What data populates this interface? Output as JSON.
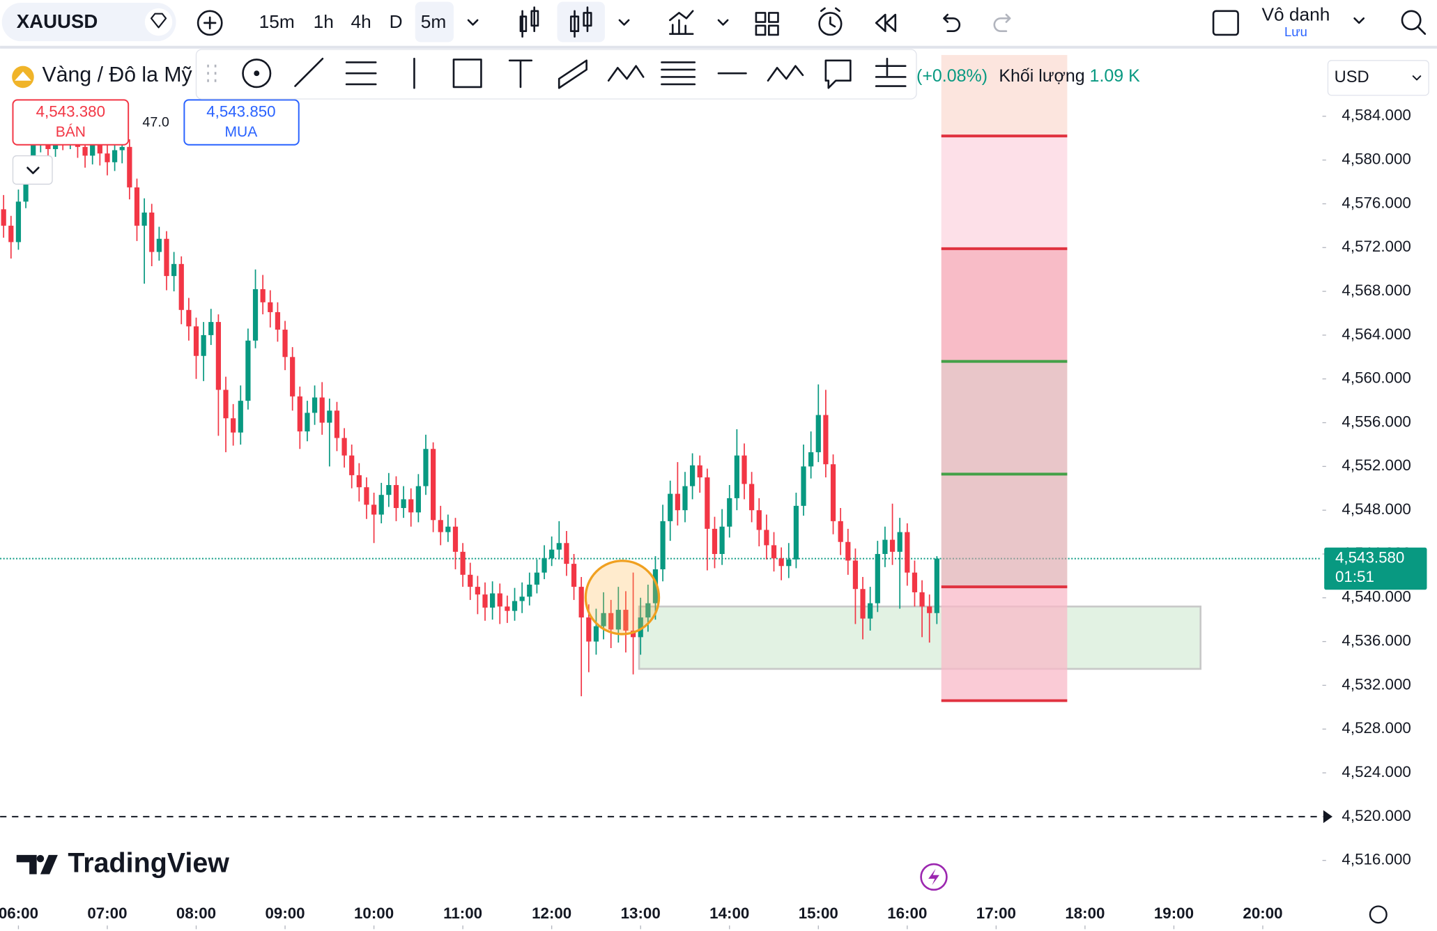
{
  "toolbar": {
    "symbol": "XAUUSD",
    "intervals": [
      "15m",
      "1h",
      "4h",
      "D",
      "5m"
    ],
    "layout_name": "Vô danh",
    "save": "Lưu"
  },
  "legend": {
    "title": "Vàng / Đô la Mỹ",
    "change": "(+0.08%)",
    "volume_label": "Khối lượng",
    "volume": "1.09 K"
  },
  "trade": {
    "sell_price": "4,543.380",
    "sell": "BÁN",
    "spread": "47.0",
    "buy_price": "4,543.850",
    "buy": "MUA"
  },
  "currency": "USD",
  "brand": "TradingView",
  "chart_data": {
    "type": "candlestick",
    "up_color": "#089981",
    "down_color": "#f23645",
    "xlim": [
      347.6,
      1238.4
    ],
    "ylim": [
      4513.4,
      4589.6
    ],
    "xticks": [
      {
        "value": 360,
        "label": "06:00"
      },
      {
        "value": 420,
        "label": "07:00"
      },
      {
        "value": 480,
        "label": "08:00"
      },
      {
        "value": 540,
        "label": "09:00"
      },
      {
        "value": 600,
        "label": "10:00"
      },
      {
        "value": 660,
        "label": "11:00"
      },
      {
        "value": 720,
        "label": "12:00"
      },
      {
        "value": 780,
        "label": "13:00"
      },
      {
        "value": 840,
        "label": "14:00"
      },
      {
        "value": 900,
        "label": "15:00"
      },
      {
        "value": 960,
        "label": "16:00"
      },
      {
        "value": 1020,
        "label": "17:00"
      },
      {
        "value": 1080,
        "label": "18:00"
      },
      {
        "value": 1140,
        "label": "19:00"
      },
      {
        "value": 1200,
        "label": "20:00"
      }
    ],
    "yticks": [
      {
        "value": 4516,
        "label": "4,516.000"
      },
      {
        "value": 4520,
        "label": "4,520.000"
      },
      {
        "value": 4524,
        "label": "4,524.000"
      },
      {
        "value": 4528,
        "label": "4,528.000"
      },
      {
        "value": 4532,
        "label": "4,532.000"
      },
      {
        "value": 4536,
        "label": "4,536.000"
      },
      {
        "value": 4540,
        "label": "4,540.000"
      },
      {
        "value": 4544,
        "label": "4,544.000"
      },
      {
        "value": 4548,
        "label": "4,548.000"
      },
      {
        "value": 4552,
        "label": "4,552.000"
      },
      {
        "value": 4556,
        "label": "4,556.000"
      },
      {
        "value": 4560,
        "label": "4,560.000"
      },
      {
        "value": 4564,
        "label": "4,564.000"
      },
      {
        "value": 4568,
        "label": "4,568.000"
      },
      {
        "value": 4572,
        "label": "4,572.000"
      },
      {
        "value": 4576,
        "label": "4,576.000"
      },
      {
        "value": 4580,
        "label": "4,580.000"
      },
      {
        "value": 4584,
        "label": "4,584.000"
      }
    ],
    "x": [
      350,
      355,
      360,
      365,
      370,
      375,
      380,
      385,
      390,
      395,
      400,
      405,
      410,
      415,
      420,
      425,
      430,
      435,
      440,
      445,
      450,
      455,
      460,
      465,
      470,
      475,
      480,
      485,
      490,
      495,
      500,
      505,
      510,
      515,
      520,
      525,
      530,
      535,
      540,
      545,
      550,
      555,
      560,
      565,
      570,
      575,
      580,
      585,
      590,
      595,
      600,
      605,
      610,
      615,
      620,
      625,
      630,
      635,
      640,
      645,
      650,
      655,
      660,
      665,
      670,
      675,
      680,
      685,
      690,
      695,
      700,
      705,
      710,
      715,
      720,
      725,
      730,
      735,
      740,
      745,
      750,
      755,
      760,
      765,
      770,
      775,
      780,
      785,
      790,
      795,
      800,
      805,
      810,
      815,
      820,
      825,
      830,
      835,
      840,
      845,
      850,
      855,
      860,
      865,
      870,
      875,
      880,
      885,
      890,
      895,
      900,
      905,
      910,
      915,
      920,
      925,
      930,
      935,
      940,
      945,
      950,
      955,
      960,
      965,
      970,
      975,
      980
    ],
    "open": [
      4575.5,
      4574.0,
      4572.5,
      4576.2,
      4579.0,
      4581.5,
      4582.0,
      4581.0,
      4582.5,
      4581.8,
      4582.6,
      4581.2,
      4580.4,
      4581.9,
      4580.6,
      4579.8,
      4580.9,
      4581.2,
      4577.5,
      4574.0,
      4575.2,
      4571.6,
      4572.8,
      4569.4,
      4570.5,
      4566.3,
      4564.8,
      4562.1,
      4564.0,
      4565.2,
      4559.0,
      4556.4,
      4555.1,
      4558.0,
      4563.5,
      4568.2,
      4567.0,
      4566.1,
      4564.5,
      4562.0,
      4558.4,
      4555.2,
      4556.9,
      4558.3,
      4556.0,
      4557.1,
      4554.6,
      4553.0,
      4551.2,
      4550.1,
      4548.5,
      4547.6,
      4549.4,
      4550.3,
      4548.2,
      4549.0,
      4547.8,
      4550.2,
      4553.6,
      4547.1,
      4546.0,
      4546.5,
      4544.2,
      4542.1,
      4541.0,
      4540.3,
      4539.1,
      4540.4,
      4539.2,
      4538.8,
      4539.7,
      4540.1,
      4541.2,
      4542.3,
      4543.6,
      4544.4,
      4545.0,
      4543.1,
      4541.0,
      4538.2,
      4536.0,
      4537.4,
      4538.6,
      4537.1,
      4538.9,
      4537.0,
      4536.4,
      4538.2,
      4539.5,
      4542.6,
      4547.0,
      4549.5,
      4548.0,
      4550.2,
      4552.1,
      4551.0,
      4546.3,
      4544.0,
      4546.5,
      4549.1,
      4553.0,
      4550.4,
      4548.0,
      4546.2,
      4544.8,
      4543.6,
      4542.9,
      4543.5,
      4548.4,
      4552.0,
      4553.3,
      4556.7,
      4552.2,
      4547.0,
      4545.1,
      4543.4,
      4540.8,
      4538.1,
      4539.5,
      4544.0,
      4545.3,
      4544.2,
      4546.0,
      4542.3,
      4540.5,
      4539.2,
      4538.6
    ],
    "high": [
      4576.8,
      4574.9,
      4577.3,
      4580.1,
      4582.6,
      4583.4,
      4583.0,
      4583.6,
      4583.5,
      4583.9,
      4583.4,
      4582.1,
      4582.8,
      4582.5,
      4581.7,
      4582.0,
      4582.4,
      4581.9,
      4578.3,
      4576.5,
      4576.0,
      4573.9,
      4573.5,
      4571.6,
      4571.2,
      4567.4,
      4565.6,
      4565.2,
      4566.4,
      4565.9,
      4560.2,
      4557.7,
      4559.4,
      4564.6,
      4570.0,
      4569.5,
      4568.1,
      4567.0,
      4565.3,
      4562.9,
      4559.3,
      4558.0,
      4559.4,
      4559.7,
      4558.2,
      4557.9,
      4555.5,
      4554.0,
      4552.3,
      4551.0,
      4549.6,
      4550.5,
      4551.4,
      4551.1,
      4550.2,
      4550.0,
      4551.3,
      4554.9,
      4554.2,
      4548.4,
      4547.6,
      4547.3,
      4545.0,
      4543.2,
      4542.0,
      4541.4,
      4541.5,
      4541.3,
      4540.2,
      4540.9,
      4541.4,
      4542.3,
      4543.5,
      4544.8,
      4545.6,
      4547.0,
      4546.1,
      4544.0,
      4541.9,
      4539.4,
      4539.0,
      4540.5,
      4539.8,
      4541.0,
      4540.6,
      4542.3,
      4540.0,
      4541.2,
      4543.8,
      4548.5,
      4550.7,
      4552.4,
      4551.5,
      4553.2,
      4553.0,
      4551.8,
      4547.4,
      4548.1,
      4550.3,
      4555.4,
      4554.1,
      4551.5,
      4549.1,
      4547.6,
      4546.0,
      4544.6,
      4545.0,
      4549.6,
      4554.0,
      4555.2,
      4559.5,
      4559.0,
      4553.1,
      4548.2,
      4546.3,
      4544.5,
      4541.9,
      4541.0,
      4545.2,
      4546.5,
      4548.6,
      4547.3,
      4546.8,
      4543.4,
      4541.6,
      4540.3,
      4543.8
    ],
    "low": [
      4572.9,
      4571.0,
      4571.8,
      4575.6,
      4578.2,
      4580.7,
      4580.1,
      4580.3,
      4580.9,
      4581.0,
      4580.2,
      4579.3,
      4579.6,
      4579.5,
      4578.6,
      4579.0,
      4579.7,
      4576.4,
      4572.6,
      4568.7,
      4570.3,
      4570.8,
      4568.1,
      4568.0,
      4565.0,
      4563.5,
      4560.0,
      4559.8,
      4563.1,
      4554.8,
      4553.3,
      4553.9,
      4554.0,
      4557.2,
      4562.8,
      4565.9,
      4564.7,
      4563.4,
      4560.8,
      4557.1,
      4553.6,
      4554.3,
      4555.8,
      4554.9,
      4552.0,
      4553.4,
      4551.9,
      4550.0,
      4548.8,
      4547.2,
      4545.0,
      4546.8,
      4548.3,
      4547.0,
      4547.3,
      4546.5,
      4546.9,
      4549.4,
      4546.0,
      4544.8,
      4545.1,
      4542.6,
      4541.0,
      4539.8,
      4538.5,
      4537.9,
      4538.0,
      4537.6,
      4537.7,
      4537.9,
      4538.6,
      4539.3,
      4540.4,
      4541.7,
      4542.9,
      4543.5,
      4542.0,
      4539.8,
      4531.0,
      4533.2,
      4534.8,
      4536.2,
      4535.4,
      4535.9,
      4535.0,
      4533.0,
      4534.8,
      4536.9,
      4538.0,
      4541.5,
      4545.2,
      4546.6,
      4546.9,
      4549.0,
      4549.6,
      4542.5,
      4542.7,
      4543.0,
      4545.5,
      4548.0,
      4549.0,
      4546.9,
      4544.7,
      4543.5,
      4542.4,
      4541.6,
      4541.8,
      4542.7,
      4547.5,
      4550.9,
      4552.4,
      4551.0,
      4545.8,
      4543.9,
      4542.1,
      4537.6,
      4536.2,
      4537.0,
      4538.7,
      4542.8,
      4543.0,
      4539.0,
      4541.1,
      4539.2,
      4536.4,
      4535.9,
      4537.6
    ],
    "close": [
      4574.0,
      4572.5,
      4576.2,
      4579.0,
      4581.5,
      4582.0,
      4581.0,
      4582.5,
      4581.8,
      4582.6,
      4581.2,
      4580.4,
      4581.9,
      4580.6,
      4579.8,
      4580.9,
      4581.2,
      4577.5,
      4574.0,
      4575.2,
      4571.6,
      4572.8,
      4569.4,
      4570.5,
      4566.3,
      4564.8,
      4562.1,
      4564.0,
      4565.2,
      4559.0,
      4556.4,
      4555.1,
      4558.0,
      4563.5,
      4568.2,
      4567.0,
      4566.1,
      4564.5,
      4562.0,
      4558.4,
      4555.2,
      4556.9,
      4558.3,
      4556.0,
      4557.1,
      4554.6,
      4553.0,
      4551.2,
      4550.1,
      4548.5,
      4547.6,
      4549.4,
      4550.3,
      4548.2,
      4549.0,
      4547.8,
      4550.2,
      4553.6,
      4547.1,
      4546.0,
      4546.5,
      4544.2,
      4542.1,
      4541.0,
      4540.3,
      4539.1,
      4540.4,
      4539.2,
      4538.8,
      4539.7,
      4540.1,
      4541.2,
      4542.3,
      4543.6,
      4544.4,
      4545.0,
      4543.1,
      4541.0,
      4538.2,
      4536.0,
      4537.4,
      4538.6,
      4537.1,
      4538.9,
      4537.0,
      4536.4,
      4538.2,
      4539.5,
      4542.6,
      4547.0,
      4549.5,
      4548.0,
      4550.2,
      4552.1,
      4551.0,
      4546.3,
      4544.0,
      4546.5,
      4549.1,
      4553.0,
      4550.4,
      4548.0,
      4546.2,
      4544.8,
      4543.6,
      4542.9,
      4543.5,
      4548.4,
      4552.0,
      4553.3,
      4556.7,
      4552.2,
      4547.0,
      4545.1,
      4543.4,
      4540.8,
      4538.1,
      4539.5,
      4544.0,
      4545.3,
      4544.2,
      4546.0,
      4542.3,
      4540.5,
      4539.2,
      4538.6,
      4543.58
    ],
    "last_price": {
      "value": 4543.58,
      "label": "4,543.580"
    },
    "countdown": "01:51",
    "horizontal_line": 4520,
    "zone": {
      "x": [
        779,
        1158
      ],
      "y": [
        4533.5,
        4539.2
      ]
    },
    "position": {
      "x": [
        983,
        1068
      ],
      "levels": [
        {
          "value": 4582.2,
          "color": "#e0323f"
        },
        {
          "value": 4571.9,
          "color": "#e0323f"
        },
        {
          "value": 4561.6,
          "color": "#43a047"
        },
        {
          "value": 4551.3,
          "color": "#43a047"
        },
        {
          "value": 4541.0,
          "color": "#e0323f"
        },
        {
          "value": 4530.6,
          "color": "#e0323f"
        }
      ]
    }
  }
}
